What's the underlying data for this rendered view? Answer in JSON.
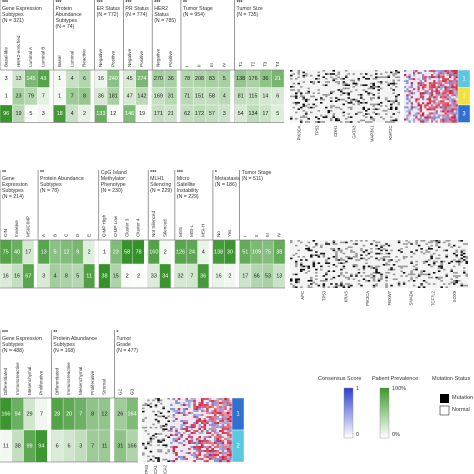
{
  "panels": [
    {
      "groups": [
        {
          "stars": "***",
          "title": "Gene Expression Subtypes",
          "n": "(N = 321)",
          "columns": [
            "Basal-like",
            "HER2-enriched",
            "Luminal A",
            "Luminal B"
          ],
          "rows": [
            [
              3,
              13,
              145,
              43
            ],
            [
              1,
              23,
              79,
              7
            ],
            [
              96,
              19,
              5,
              3
            ]
          ]
        },
        {
          "stars": "***",
          "title": "Protein Abundance Subtypes",
          "n": "(N = 74)",
          "columns": [
            "Basal",
            "Luminal",
            "Reactive"
          ],
          "rows": [
            [
              1,
              4,
              6
            ],
            [
              1,
              7,
              8
            ],
            [
              18,
              4,
              2
            ]
          ]
        },
        {
          "stars": "***",
          "title": "ER Status",
          "n": "(N = 772)",
          "columns": [
            "Negative",
            "Positive"
          ],
          "rows": [
            [
              16,
              240
            ],
            [
              36,
              181
            ],
            [
              133,
              12
            ]
          ]
        },
        {
          "stars": "***",
          "title": "PR Status",
          "n": "(N = 774)",
          "columns": [
            "Negative",
            "Positive"
          ],
          "rows": [
            [
              45,
              274
            ],
            [
              47,
              142
            ],
            [
              146,
              19
            ]
          ]
        },
        {
          "stars": "***",
          "title": "HER2 Status",
          "n": "(N = 785)",
          "columns": [
            "Negative",
            "Positive"
          ],
          "rows": [
            [
              270,
              36
            ],
            [
              169,
              31
            ],
            [
              171,
              21
            ]
          ]
        },
        {
          "stars": "**",
          "title": "Tumor Stage",
          "n": "(N = 954)",
          "columns": [
            "I",
            "II",
            "III",
            "IV"
          ],
          "rows": [
            [
              78,
              208,
              83,
              5
            ],
            [
              71,
              151,
              58,
              4
            ],
            [
              62,
              172,
              57,
              3
            ]
          ]
        },
        {
          "stars": "***",
          "title": "Tumor Size",
          "n": "(N = 735)",
          "columns": [
            "T1",
            "T2",
            "T3",
            "T4"
          ],
          "rows": [
            [
              138,
              176,
              36,
              21
            ],
            [
              81,
              115,
              14,
              6
            ],
            [
              54,
              134,
              17,
              5
            ]
          ]
        }
      ],
      "clusters": [
        "1",
        "2",
        "3"
      ],
      "genes": [
        "PIK3CA",
        "TP53",
        "CDH1",
        "GATA3",
        "MAP3K1",
        "KMT2C"
      ]
    },
    {
      "groups": [
        {
          "stars": "**",
          "title": "Gene Expression Subtypes",
          "n": "(N = 214)",
          "columns": [
            "CIN",
            "Invasive",
            "MSI/CIMP"
          ],
          "rows": [
            [
              75,
              40,
              17
            ],
            [
              16,
              16,
              67
            ]
          ]
        },
        {
          "stars": "**",
          "title": "Protein Abundance Subtypes",
          "n": "(N = 78)",
          "columns": [
            "A",
            "B",
            "C",
            "D",
            "E"
          ],
          "rows": [
            [
              13,
              5,
              12,
              9,
              2
            ],
            [
              3,
              4,
              8,
              5,
              11
            ]
          ]
        },
        {
          "stars": "",
          "title": "CpG Island Methylator Phenotype",
          "n": "(N = 230)",
          "columns": [
            "CIMP High",
            "CIMP Low",
            "Cluster 3",
            "Cluster 4"
          ],
          "rows": [
            [
              1,
              23,
              58,
              78
            ],
            [
              38,
              15,
              2,
              2
            ]
          ]
        },
        {
          "stars": "***",
          "title": "MLH1 Silencing",
          "n": "(N = 229)",
          "columns": [
            "Not Silenced",
            "Silenced"
          ],
          "rows": [
            [
              160,
              2
            ],
            [
              33,
              34
            ]
          ]
        },
        {
          "stars": "***",
          "title": "Micro Satellite Instability",
          "n": "(N = 229)",
          "columns": [
            "MSS",
            "MSI-L",
            "MSI-H"
          ],
          "rows": [
            [
              126,
              24,
              4
            ],
            [
              32,
              7,
              36
            ]
          ]
        },
        {
          "stars": "*",
          "title": "Metastasis",
          "n": "(N = 186)",
          "columns": [
            "No",
            "Yes"
          ],
          "rows": [
            [
              138,
              30
            ],
            [
              16,
              2
            ]
          ]
        },
        {
          "stars": "",
          "title": "Tumor Stage",
          "n": "(N = 511)",
          "columns": [
            "I",
            "II",
            "III",
            "IV"
          ],
          "rows": [
            [
              51,
              109,
              75,
              38
            ],
            [
              17,
              66,
              53,
              13
            ]
          ]
        }
      ],
      "clusters": [],
      "genes": [
        "APC",
        "TP53",
        "KRAS",
        "PIK3CA",
        "FBXW7",
        "SMAD4",
        "TCF7L2",
        "SOX9"
      ]
    },
    {
      "groups": [
        {
          "stars": "***",
          "title": "Gene Expression Subtypes",
          "n": "(N = 488)",
          "columns": [
            "Differentiated",
            "Immunoreactive",
            "Mesenchymal",
            "Proliferative"
          ],
          "rows": [
            [
              166,
              94,
              29,
              7
            ],
            [
              11,
              38,
              99,
              94
            ]
          ]
        },
        {
          "stars": "**",
          "title": "Protein Abundance Subtypes",
          "n": "(N = 168)",
          "columns": [
            "Differentiated",
            "Immunoreactive",
            "Mesenchymal",
            "Proliferative",
            "Stromal"
          ],
          "rows": [
            [
              28,
              20,
              7,
              8,
              12
            ],
            [
              6,
              6,
              3,
              7,
              11
            ]
          ]
        },
        {
          "stars": "*",
          "title": "Tumor Grade",
          "n": "(N = 477)",
          "columns": [
            "G2",
            "G3"
          ],
          "rows": [
            [
              26,
              264
            ],
            [
              31,
              166
            ]
          ]
        }
      ],
      "clusters": [
        "1",
        "2"
      ],
      "genes": [
        "TP53",
        "BRCA1",
        "BRCA2"
      ]
    }
  ],
  "legend": {
    "consensus": {
      "title": "Consensus Score",
      "high": "1",
      "low": "0"
    },
    "prevalence": {
      "title": "Patient Prevalence",
      "high": "100%",
      "low": "0%"
    },
    "mutation": {
      "title": "Mutation Status",
      "mutation": "Mutation",
      "normal": "Normal"
    }
  }
}
